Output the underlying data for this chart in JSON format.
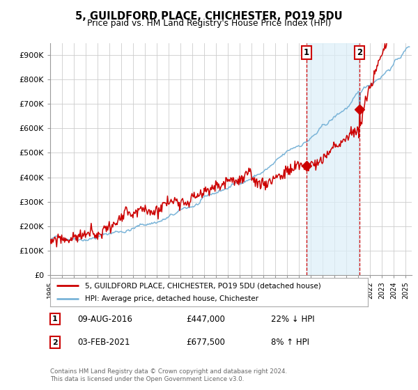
{
  "title": "5, GUILDFORD PLACE, CHICHESTER, PO19 5DU",
  "subtitle": "Price paid vs. HM Land Registry's House Price Index (HPI)",
  "ylabel_ticks": [
    "£0",
    "£100K",
    "£200K",
    "£300K",
    "£400K",
    "£500K",
    "£600K",
    "£700K",
    "£800K",
    "£900K"
  ],
  "ytick_vals": [
    0,
    100000,
    200000,
    300000,
    400000,
    500000,
    600000,
    700000,
    800000,
    900000
  ],
  "ylim": [
    0,
    950000
  ],
  "xlim_start": 1995.0,
  "xlim_end": 2025.5,
  "legend_line1": "5, GUILDFORD PLACE, CHICHESTER, PO19 5DU (detached house)",
  "legend_line2": "HPI: Average price, detached house, Chichester",
  "marker1_x": 2016.6,
  "marker1_y": 447000,
  "marker1_label": "1",
  "marker1_date": "09-AUG-2016",
  "marker1_price": "£447,000",
  "marker1_hpi": "22% ↓ HPI",
  "marker2_x": 2021.08,
  "marker2_y": 677500,
  "marker2_label": "2",
  "marker2_date": "03-FEB-2021",
  "marker2_price": "£677,500",
  "marker2_hpi": "8% ↑ HPI",
  "footnote": "Contains HM Land Registry data © Crown copyright and database right 2024.\nThis data is licensed under the Open Government Licence v3.0.",
  "hpi_color": "#7ab4d8",
  "hpi_fill_color": "#dceef8",
  "price_color": "#cc0000",
  "marker_vline_color": "#cc0000",
  "box_color": "#cc0000",
  "background_color": "#ffffff",
  "grid_color": "#cccccc"
}
